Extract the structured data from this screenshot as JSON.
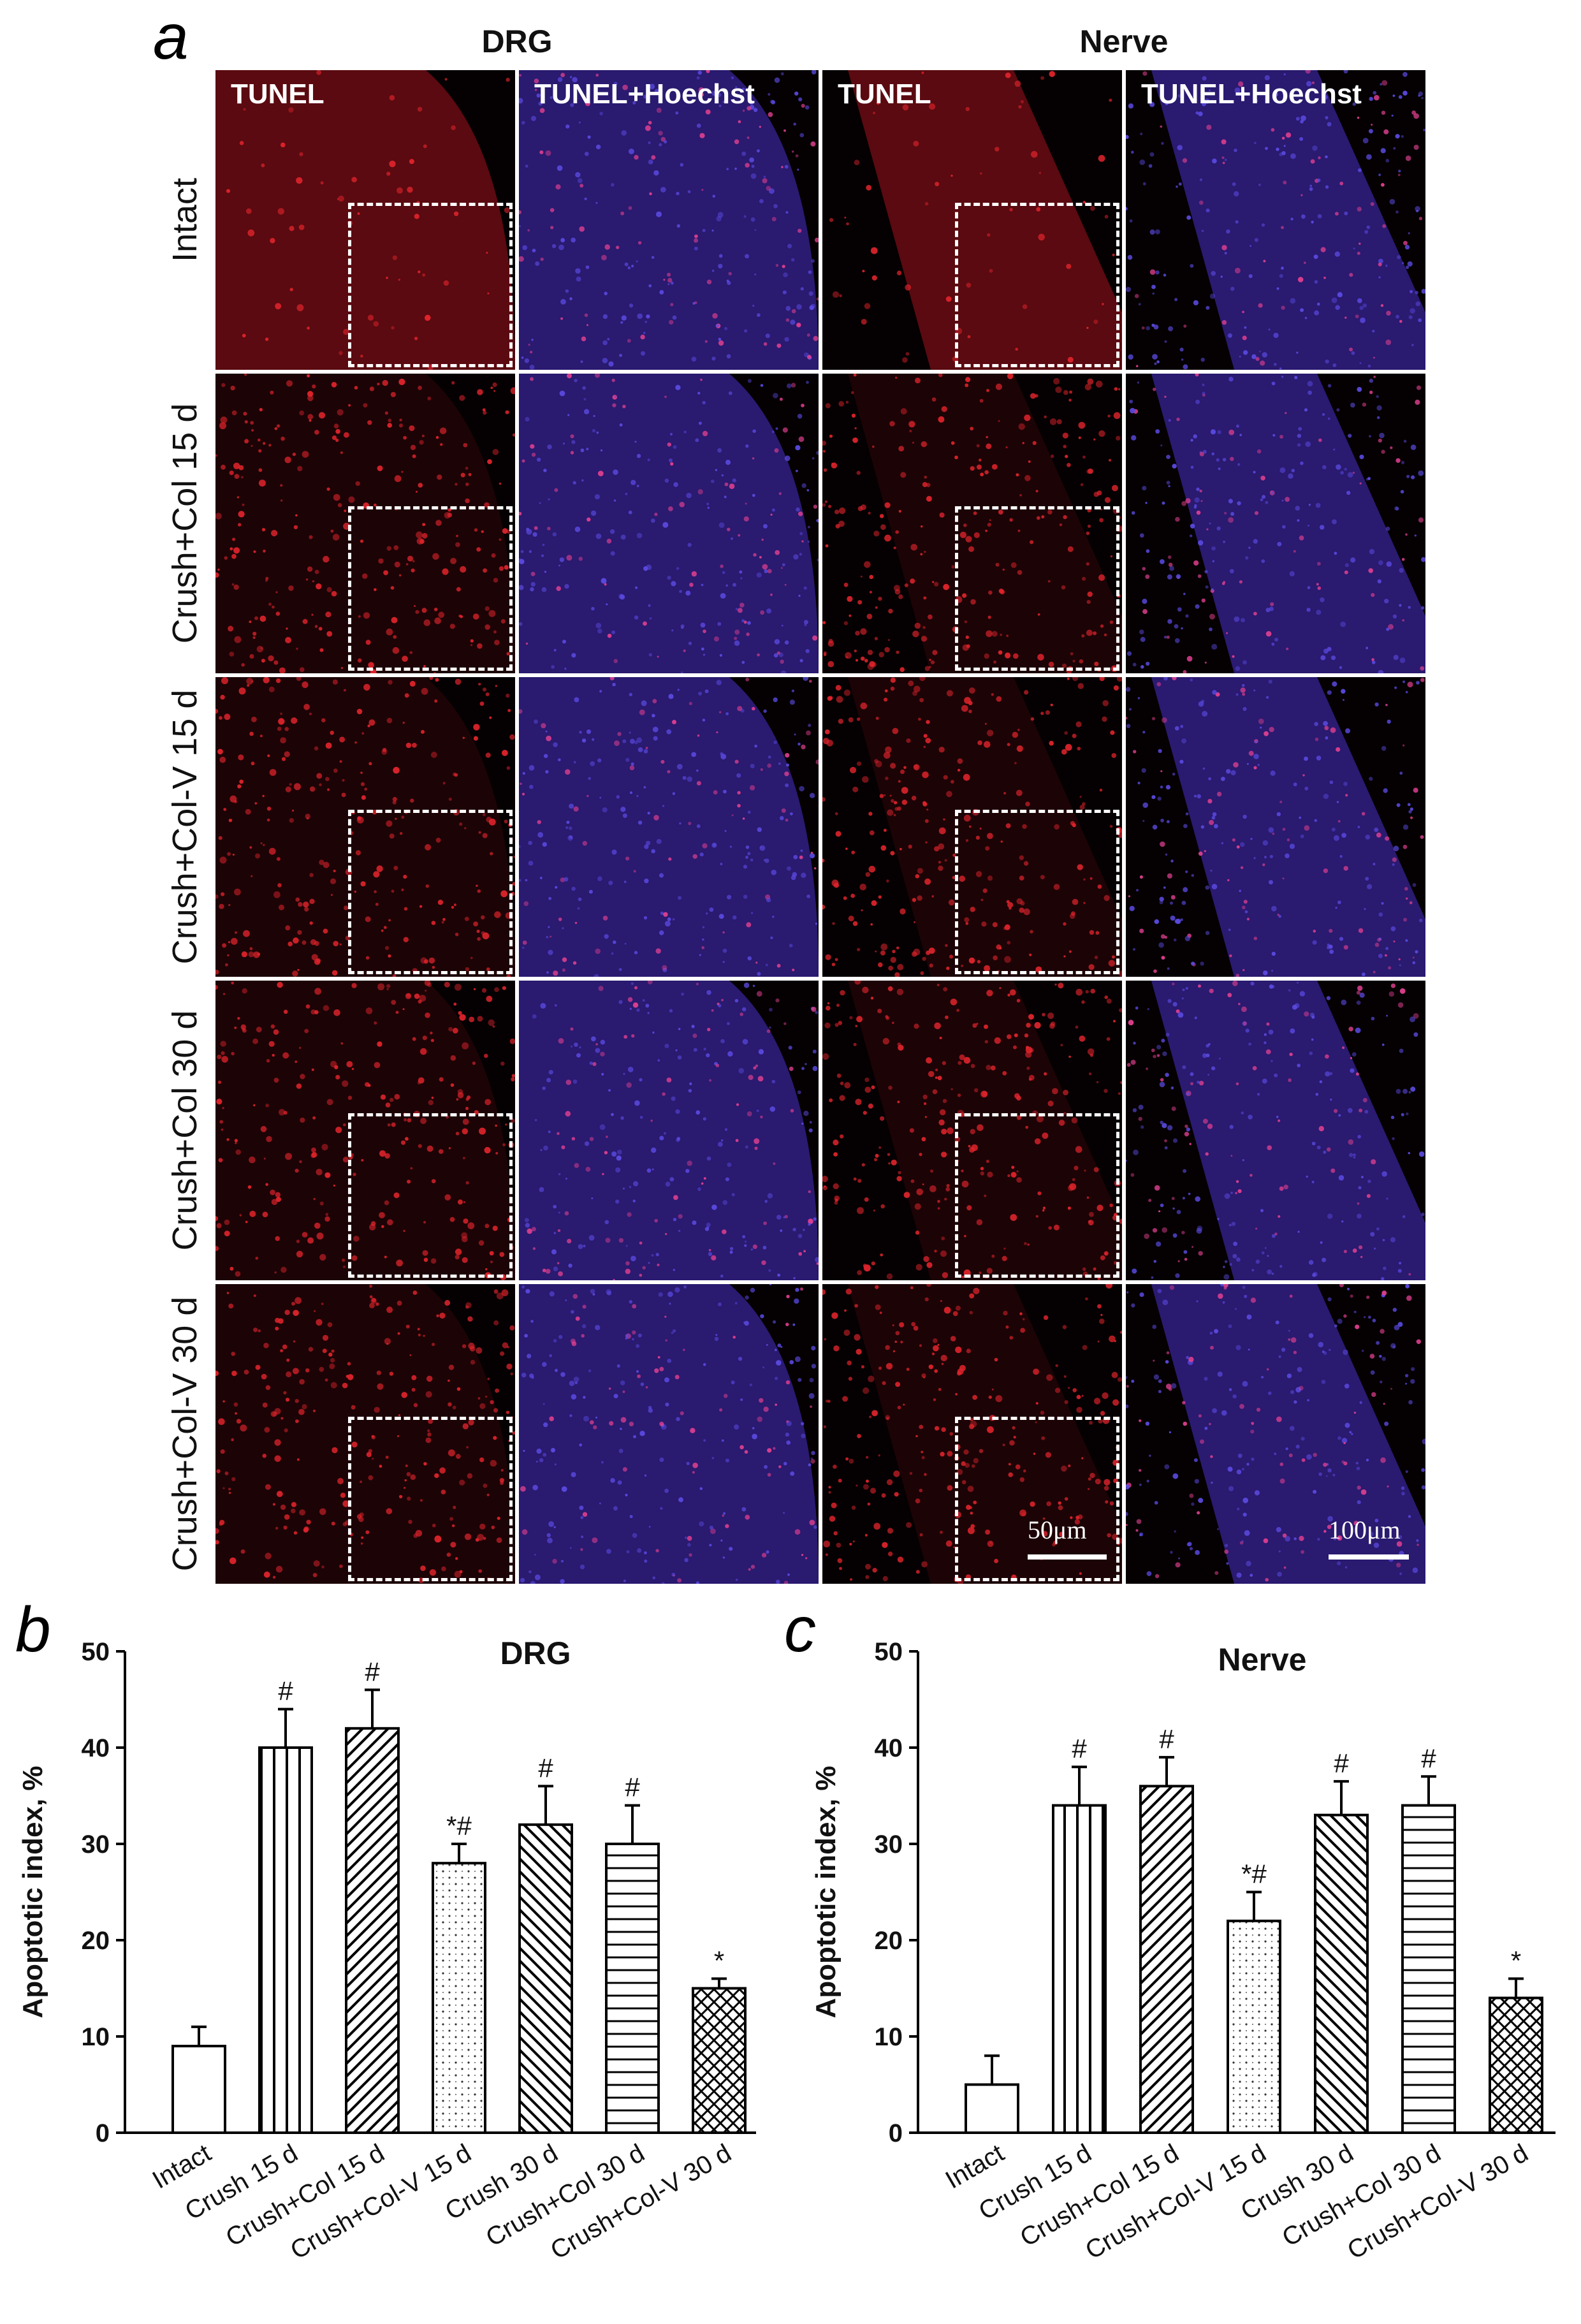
{
  "panel_labels": {
    "a": "a",
    "b": "b",
    "c": "c"
  },
  "micrographs": {
    "group_titles": [
      "DRG",
      "Nerve"
    ],
    "column_labels": [
      "TUNEL",
      "TUNEL+Hoechst",
      "TUNEL",
      "TUNEL+Hoechst"
    ],
    "row_labels": [
      "Intact",
      "Crush+Col 15 d",
      "Crush+Col-V 15 d",
      "Crush+Col 30 d",
      "Crush+Col-V 30 d"
    ],
    "scale_bars": [
      "50μm",
      "100μm"
    ],
    "colors": {
      "tunel_red": "#e0242c",
      "hoechst_blue": "#5a4ae0",
      "background": "#050002"
    }
  },
  "chart_data": [
    {
      "type": "bar",
      "title": "DRG",
      "ylabel": "Apoptotic index, %",
      "xlabel": "",
      "ylim": [
        0,
        50
      ],
      "yticks": [
        0,
        10,
        20,
        30,
        40,
        50
      ],
      "categories": [
        "Intact",
        "Crush 15 d",
        "Crush+Col 15 d",
        "Crush+Col-V 15 d",
        "Crush 30 d",
        "Crush+Col 30 d",
        "Crush+Col-V 30 d"
      ],
      "values": [
        9,
        40,
        42,
        28,
        32,
        30,
        15
      ],
      "errors": [
        2,
        4,
        4,
        2,
        4,
        4,
        1
      ],
      "annotations": [
        "",
        "#",
        "#",
        "*#",
        "#",
        "#",
        "*"
      ],
      "patterns": [
        "none",
        "vertical",
        "diagonal",
        "dots",
        "backdiagonal",
        "horizontal",
        "crosshatch"
      ]
    },
    {
      "type": "bar",
      "title": "Nerve",
      "ylabel": "Apoptotic index, %",
      "xlabel": "",
      "ylim": [
        0,
        50
      ],
      "yticks": [
        0,
        10,
        20,
        30,
        40,
        50
      ],
      "categories": [
        "Intact",
        "Crush 15 d",
        "Crush+Col 15 d",
        "Crush+Col-V 15 d",
        "Crush 30 d",
        "Crush+Col 30 d",
        "Crush+Col-V 30 d"
      ],
      "values": [
        5,
        34,
        36,
        22,
        33,
        34,
        14
      ],
      "errors": [
        3,
        4,
        3,
        3,
        3.5,
        3,
        2
      ],
      "annotations": [
        "",
        "#",
        "#",
        "*#",
        "#",
        "#",
        "*"
      ],
      "patterns": [
        "none",
        "vertical",
        "diagonal",
        "dots",
        "backdiagonal",
        "horizontal",
        "crosshatch"
      ]
    }
  ]
}
